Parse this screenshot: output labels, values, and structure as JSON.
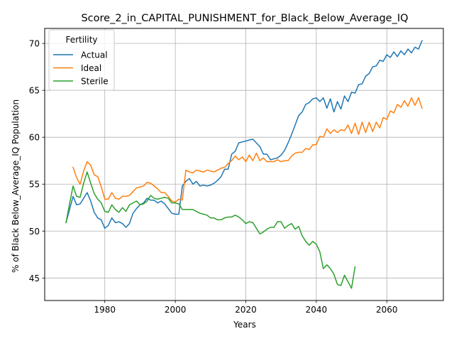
{
  "chart_data": {
    "type": "line",
    "title": "Score_2_in_CAPITAL_PUNISHMENT_for_Black_Below_Average_IQ",
    "xlabel": "Years",
    "ylabel": "% of Black Below_Average_IQ Population",
    "xlim": [
      1962.95,
      2076.05
    ],
    "ylim": [
      42.6,
      71.6
    ],
    "xticks": [
      1980,
      2000,
      2020,
      2040,
      2060
    ],
    "yticks": [
      45,
      50,
      55,
      60,
      65,
      70
    ],
    "grid": true,
    "legend": {
      "title": "Fertility",
      "placement": "upper-left"
    },
    "series": [
      {
        "name": "Actual",
        "color": "#1f77b4",
        "x": [
          1969,
          1970,
          1971,
          1972,
          1973,
          1974,
          1975,
          1976,
          1977,
          1978,
          1979,
          1980,
          1981,
          1982,
          1983,
          1984,
          1985,
          1986,
          1987,
          1988,
          1989,
          1990,
          1991,
          1992,
          1993,
          1994,
          1995,
          1996,
          1997,
          1998,
          1999,
          2000,
          2001,
          2002,
          2003,
          2004,
          2005,
          2006,
          2007,
          2008,
          2009,
          2010,
          2011,
          2012,
          2013,
          2014,
          2015,
          2016,
          2017,
          2018,
          2019,
          2020,
          2021,
          2022,
          2023,
          2024,
          2025,
          2026,
          2027,
          2028,
          2029,
          2030,
          2031,
          2032,
          2033,
          2034,
          2035,
          2036,
          2037,
          2038,
          2039,
          2040,
          2041,
          2042,
          2043,
          2044,
          2045,
          2046,
          2047,
          2048,
          2049,
          2050,
          2051,
          2052,
          2053,
          2054,
          2055,
          2056,
          2057,
          2058,
          2059,
          2060,
          2061,
          2062,
          2063,
          2064,
          2065,
          2066,
          2067,
          2068,
          2069,
          2070
        ],
        "values": [
          50.9,
          52.3,
          53.7,
          52.8,
          52.9,
          53.5,
          54.1,
          53.2,
          52.0,
          51.4,
          51.2,
          50.3,
          50.6,
          51.4,
          50.9,
          51.0,
          50.8,
          50.4,
          50.8,
          51.9,
          52.4,
          52.8,
          53.0,
          53.5,
          53.3,
          53.3,
          53.0,
          53.2,
          52.9,
          52.4,
          51.9,
          51.8,
          51.8,
          54.8,
          55.3,
          55.6,
          55.0,
          55.3,
          54.8,
          54.9,
          54.8,
          54.9,
          55.1,
          55.4,
          55.8,
          56.6,
          56.6,
          58.2,
          58.5,
          59.4,
          59.5,
          59.6,
          59.7,
          59.8,
          59.4,
          59.0,
          58.2,
          58.2,
          57.6,
          57.7,
          57.8,
          58.1,
          58.6,
          59.4,
          60.3,
          61.3,
          62.3,
          62.7,
          63.5,
          63.7,
          64.1,
          64.2,
          63.8,
          64.2,
          63.1,
          64.1,
          62.7,
          63.8,
          63.0,
          64.4,
          63.8,
          64.8,
          64.7,
          65.6,
          65.7,
          66.5,
          66.8,
          67.5,
          67.6,
          68.2,
          68.1,
          68.8,
          68.5,
          69.1,
          68.6,
          69.2,
          68.8,
          69.4,
          69.0,
          69.6,
          69.4,
          70.3
        ]
      },
      {
        "name": "Ideal",
        "color": "#ff7f0e",
        "x": [
          1971,
          1972,
          1973,
          1974,
          1975,
          1976,
          1977,
          1978,
          1979,
          1980,
          1981,
          1982,
          1983,
          1984,
          1985,
          1986,
          1987,
          1988,
          1989,
          1990,
          1991,
          1992,
          1993,
          1994,
          1995,
          1996,
          1997,
          1998,
          1999,
          2000,
          2001,
          2002,
          2003,
          2004,
          2005,
          2006,
          2007,
          2008,
          2009,
          2010,
          2011,
          2012,
          2013,
          2014,
          2015,
          2016,
          2017,
          2018,
          2019,
          2020,
          2021,
          2022,
          2023,
          2024,
          2025,
          2026,
          2027,
          2028,
          2029,
          2030,
          2031,
          2032,
          2033,
          2034,
          2035,
          2036,
          2037,
          2038,
          2039,
          2040,
          2041,
          2042,
          2043,
          2044,
          2045,
          2046,
          2047,
          2048,
          2049,
          2050,
          2051,
          2052,
          2053,
          2054,
          2055,
          2056,
          2057,
          2058,
          2059,
          2060,
          2061,
          2062,
          2063,
          2064,
          2065,
          2066,
          2067,
          2068,
          2069,
          2070
        ],
        "values": [
          56.8,
          55.7,
          55.0,
          56.4,
          57.4,
          57.0,
          56.0,
          55.8,
          54.7,
          53.4,
          53.4,
          54.1,
          53.5,
          53.4,
          53.7,
          53.7,
          53.8,
          54.2,
          54.6,
          54.7,
          54.8,
          55.2,
          55.1,
          54.8,
          54.5,
          54.1,
          54.1,
          53.7,
          53.2,
          53.1,
          53.4,
          53.3,
          56.5,
          56.3,
          56.2,
          56.5,
          56.4,
          56.3,
          56.5,
          56.4,
          56.3,
          56.5,
          56.7,
          56.8,
          57.2,
          57.5,
          58.0,
          57.6,
          57.9,
          57.4,
          58.1,
          57.5,
          58.3,
          57.5,
          57.8,
          57.4,
          57.4,
          57.4,
          57.6,
          57.4,
          57.5,
          57.5,
          58.0,
          58.3,
          58.4,
          58.4,
          58.8,
          58.7,
          59.2,
          59.2,
          60.1,
          60.0,
          60.9,
          60.4,
          60.8,
          60.5,
          60.8,
          60.7,
          61.3,
          60.4,
          61.5,
          60.3,
          61.6,
          60.5,
          61.6,
          60.6,
          61.6,
          61.0,
          62.1,
          61.9,
          62.8,
          62.6,
          63.5,
          63.2,
          63.9,
          63.3,
          64.2,
          63.4,
          64.2,
          63.1
        ]
      },
      {
        "name": "Sterile",
        "color": "#2ca02c",
        "x": [
          1969,
          1970,
          1971,
          1972,
          1973,
          1974,
          1975,
          1976,
          1977,
          1978,
          1979,
          1980,
          1981,
          1982,
          1983,
          1984,
          1985,
          1986,
          1987,
          1988,
          1989,
          1990,
          1991,
          1992,
          1993,
          1994,
          1995,
          1996,
          1997,
          1998,
          1999,
          2000,
          2001,
          2002,
          2003,
          2004,
          2005,
          2006,
          2007,
          2008,
          2009,
          2010,
          2011,
          2012,
          2013,
          2014,
          2015,
          2016,
          2017,
          2018,
          2019,
          2020,
          2021,
          2022,
          2023,
          2024,
          2025,
          2026,
          2027,
          2028,
          2029,
          2030,
          2031,
          2032,
          2033,
          2034,
          2035,
          2036,
          2037,
          2038,
          2039,
          2040,
          2041,
          2042,
          2043,
          2044,
          2045,
          2046,
          2047,
          2048,
          2049,
          2050,
          2051
        ],
        "values": [
          50.9,
          52.9,
          54.8,
          53.7,
          53.6,
          55.1,
          56.3,
          55.1,
          54.0,
          53.4,
          53.0,
          52.1,
          52.0,
          52.8,
          52.3,
          52.0,
          52.5,
          52.1,
          52.8,
          53.0,
          53.2,
          52.8,
          52.9,
          53.2,
          53.8,
          53.5,
          53.4,
          53.5,
          53.6,
          53.5,
          53.0,
          53.0,
          52.9,
          52.3,
          52.3,
          52.3,
          52.3,
          52.1,
          51.9,
          51.8,
          51.7,
          51.4,
          51.4,
          51.2,
          51.2,
          51.4,
          51.5,
          51.5,
          51.7,
          51.5,
          51.2,
          50.8,
          51.0,
          50.9,
          50.3,
          49.7,
          49.9,
          50.2,
          50.4,
          50.4,
          51.0,
          51.0,
          50.3,
          50.6,
          50.8,
          50.2,
          50.5,
          49.5,
          48.9,
          48.5,
          48.9,
          48.6,
          47.8,
          46.0,
          46.4,
          46.0,
          45.4,
          44.3,
          44.2,
          45.3,
          44.6,
          43.9,
          46.2
        ]
      }
    ]
  }
}
